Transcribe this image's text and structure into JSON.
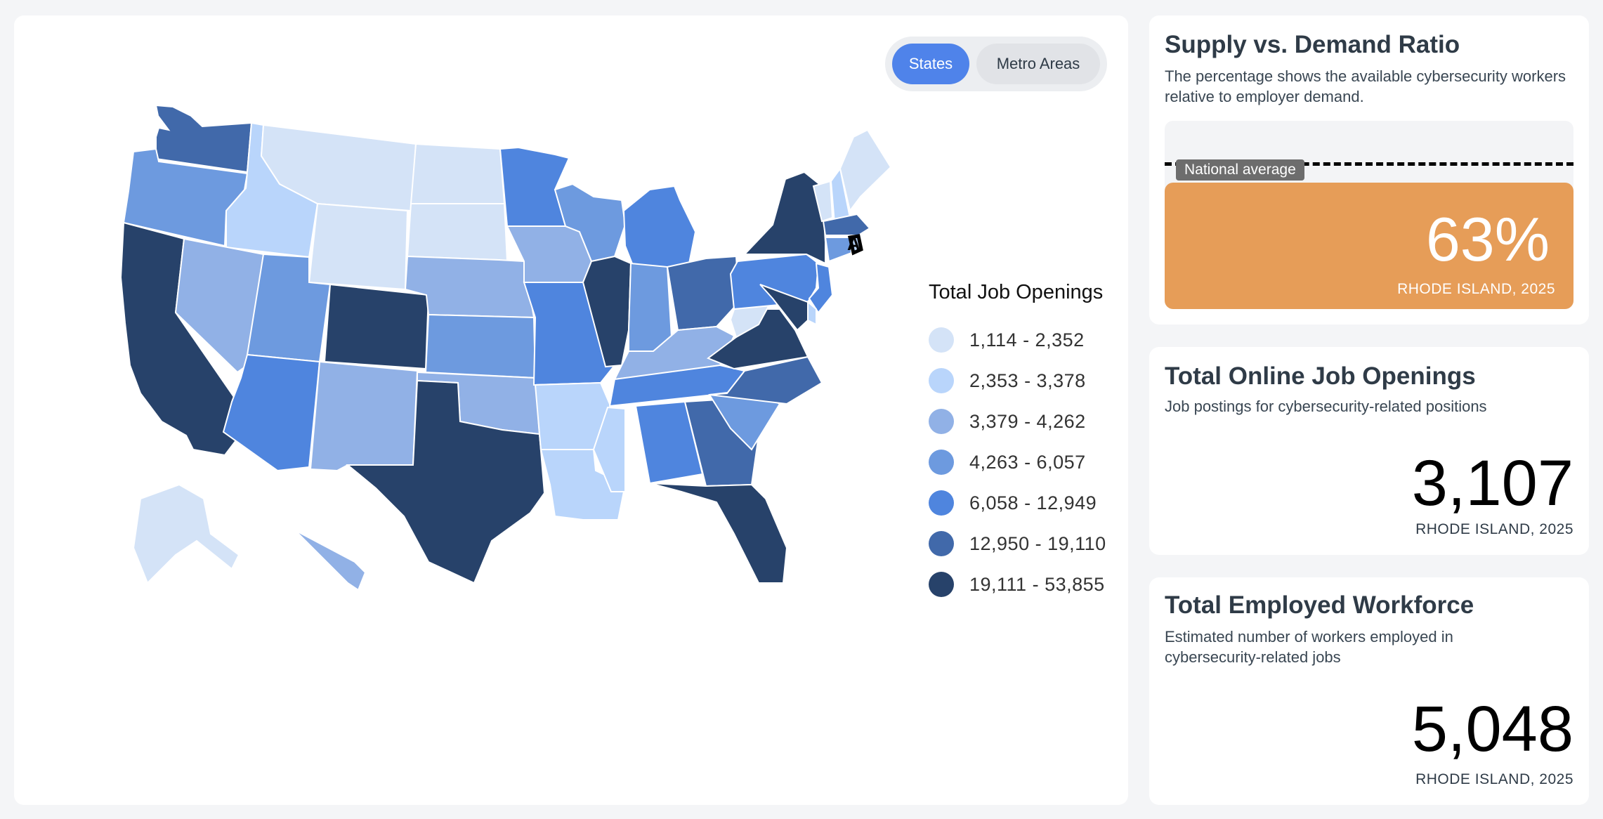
{
  "toggle": {
    "states_label": "States",
    "metro_label": "Metro Areas"
  },
  "map": {
    "selected_state": "RI",
    "selected_marker": "A",
    "legend": {
      "title": "Total Job Openings",
      "bins": [
        {
          "label": "1,114 - 2,352",
          "color": "#d4e3f7"
        },
        {
          "label": "2,353 - 3,378",
          "color": "#b9d5fb"
        },
        {
          "label": "3,379 - 4,262",
          "color": "#91b1e6"
        },
        {
          "label": "4,263 - 6,057",
          "color": "#6d9adf"
        },
        {
          "label": "6,058 - 12,949",
          "color": "#4f85de"
        },
        {
          "label": "12,950 - 19,110",
          "color": "#4169aa"
        },
        {
          "label": "19,111 - 53,855",
          "color": "#27426a"
        }
      ]
    },
    "state_bins": {
      "WA": 5,
      "OR": 3,
      "CA": 6,
      "ID": 1,
      "NV": 2,
      "MT": 0,
      "WY": 0,
      "UT": 3,
      "AZ": 4,
      "CO": 6,
      "NM": 2,
      "ND": 0,
      "SD": 0,
      "NE": 2,
      "KS": 3,
      "OK": 2,
      "TX": 6,
      "MN": 4,
      "IA": 2,
      "MO": 4,
      "AR": 1,
      "LA": 1,
      "WI": 3,
      "IL": 6,
      "MI": 4,
      "IN": 3,
      "OH": 5,
      "KY": 2,
      "TN": 4,
      "MS": 1,
      "AL": 4,
      "GA": 5,
      "FL": 6,
      "SC": 3,
      "NC": 5,
      "VA": 6,
      "WV": 0,
      "PA": 4,
      "NY": 6,
      "VT": 0,
      "NH": 1,
      "ME": 0,
      "MA": 5,
      "RI": 1,
      "CT": 3,
      "NJ": 4,
      "DE": 1,
      "MD": 6,
      "AK": 0,
      "HI": 2
    }
  },
  "ratio": {
    "title": "Supply vs. Demand Ratio",
    "subtitle": "The percentage shows the available cybersecurity workers relative to employer demand.",
    "national_average_label": "National average",
    "value": "63%",
    "location": "RHODE ISLAND, 2025",
    "bar_color": "#e69d58"
  },
  "openings": {
    "title": "Total Online Job Openings",
    "subtitle": "Job postings for cybersecurity-related positions",
    "value": "3,107",
    "location": "RHODE ISLAND, 2025"
  },
  "workforce": {
    "title": "Total Employed Workforce",
    "subtitle": "Estimated number of workers employed in cybersecurity-related jobs",
    "value": "5,048",
    "location": "RHODE ISLAND, 2025"
  }
}
